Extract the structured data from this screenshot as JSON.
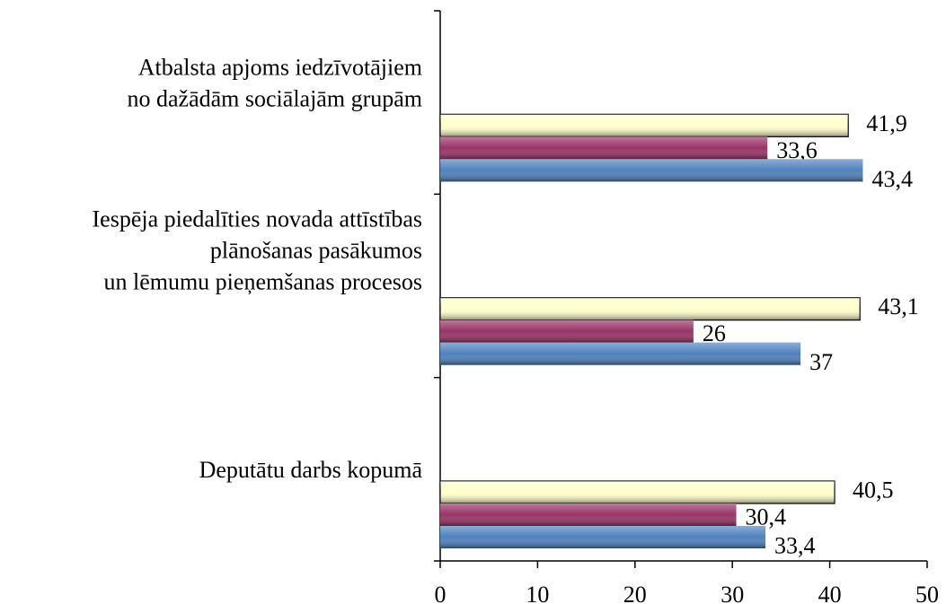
{
  "chart_data": {
    "type": "hbar",
    "categories": [
      [
        "Atbalsta apjoms iedzīvotājiem",
        "no dažādām sociālajām grupām"
      ],
      [
        "Iespēja piedalīties novada attīstības",
        "plānošanas pasākumos",
        "un lēmumu pieņemšanas procesos"
      ],
      [
        "Deputātu darbs kopumā"
      ]
    ],
    "series": [
      {
        "color": "#ffffcc",
        "values": [
          41.9,
          43.1,
          40.5
        ],
        "value_labels": [
          "41,9",
          "43,1",
          "40,5"
        ]
      },
      {
        "color": "#993366",
        "values": [
          33.6,
          26,
          30.4
        ],
        "value_labels": [
          "33,6",
          "26",
          "30,4"
        ]
      },
      {
        "color": "#4f81bd",
        "values": [
          43.4,
          37,
          33.4
        ],
        "value_labels": [
          "43,4",
          "37",
          "33,4"
        ]
      }
    ],
    "xlim": [
      0,
      50
    ],
    "xticks": [
      0,
      10,
      20,
      30,
      40,
      50
    ]
  }
}
